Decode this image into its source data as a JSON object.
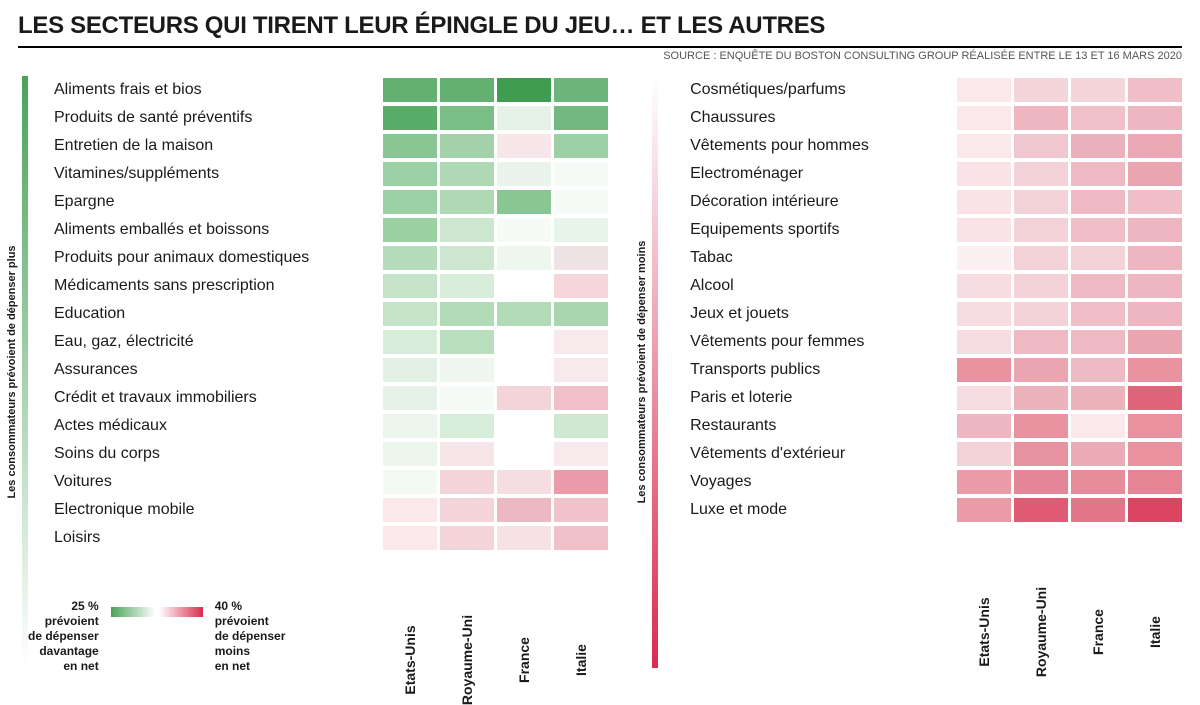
{
  "title": "LES SECTEURS QUI TIRENT LEUR ÉPINGLE DU JEU… ET LES AUTRES",
  "source": "SOURCE : ENQUÊTE DU BOSTON CONSULTING GROUP RÉALISÉE ENTRE LE 13 ET 16 MARS 2020",
  "columns": [
    "Etats-Unis",
    "Royaume-Uni",
    "France",
    "Italie"
  ],
  "left_panel": {
    "side_label": "Les consommateurs prévoient de dépenser plus",
    "gradient": {
      "from": "#4aa35a",
      "to": "#ffffff"
    },
    "rows": [
      {
        "label": "Aliments frais et bios",
        "cells": [
          "#63b071",
          "#63b071",
          "#409c51",
          "#6eb57b"
        ]
      },
      {
        "label": "Produits de santé préventifs",
        "cells": [
          "#5aac69",
          "#7bbd87",
          "#e6f1e8",
          "#73b880"
        ]
      },
      {
        "label": "Entretien de la maison",
        "cells": [
          "#8ac694",
          "#a3d2aa",
          "#f7e7ea",
          "#9ed0a6"
        ]
      },
      {
        "label": "Vitamines/suppléments",
        "cells": [
          "#9cd1a5",
          "#afd9b5",
          "#e9f3eb",
          "#f7fbf8"
        ]
      },
      {
        "label": "Epargne",
        "cells": [
          "#9cd1a5",
          "#afd9b5",
          "#8ac694",
          "#f7fbf8"
        ]
      },
      {
        "label": "Aliments emballés et boissons",
        "cells": [
          "#9bd0a3",
          "#cce6cf",
          "#f7fbf8",
          "#e8f3ea"
        ]
      },
      {
        "label": "Produits pour animaux domestiques",
        "cells": [
          "#b6ddbb",
          "#cce6cf",
          "#edf7ee",
          "#f0e3e6"
        ]
      },
      {
        "label": "Médicaments sans prescription",
        "cells": [
          "#c4e3c8",
          "#d7edda",
          "#fefefe",
          "#f4d6db"
        ]
      },
      {
        "label": "Education",
        "cells": [
          "#c4e3c8",
          "#b1dab6",
          "#b1dab6",
          "#a9d6af"
        ]
      },
      {
        "label": "Eau, gaz, électricité",
        "cells": [
          "#d7edda",
          "#b8debd",
          "#fefefe",
          "#f8e9ec"
        ]
      },
      {
        "label": "Assurances",
        "cells": [
          "#e2f1e4",
          "#eff7f0",
          "#fefefe",
          "#f8e9ec"
        ]
      },
      {
        "label": "Crédit et travaux immobiliers",
        "cells": [
          "#e6f2e7",
          "#f7fbf8",
          "#f2d4d9",
          "#f0bfc8"
        ]
      },
      {
        "label": "Actes médicaux",
        "cells": [
          "#ecf6ed",
          "#d6edd9",
          "#fefefe",
          "#cfe8d2"
        ]
      },
      {
        "label": "Soins du corps",
        "cells": [
          "#ecf6ed",
          "#f7e6e9",
          "#fefefe",
          "#f8e9ec"
        ]
      },
      {
        "label": "Voitures",
        "cells": [
          "#f3faf4",
          "#f3d4d9",
          "#f5dee2",
          "#ea9aa8"
        ]
      },
      {
        "label": "Electronique mobile",
        "cells": [
          "#fbe8eb",
          "#f3d4d9",
          "#ecb8c1",
          "#f1c4cc"
        ]
      },
      {
        "label": "Loisirs",
        "cells": [
          "#fbe8eb",
          "#f3d4d9",
          "#f6e1e5",
          "#f0c1c9"
        ]
      }
    ]
  },
  "right_panel": {
    "side_label": "Les consommateurs prévoient de dépenser moins",
    "gradient": {
      "from": "#ffffff",
      "to": "#d92c4e"
    },
    "rows": [
      {
        "label": "Cosmétiques/parfums",
        "cells": [
          "#fbe8eb",
          "#f4d5da",
          "#f4d5da",
          "#efbec7"
        ]
      },
      {
        "label": "Chaussures",
        "cells": [
          "#fbe8eb",
          "#eeb6c0",
          "#f0c1c9",
          "#eeb6c0"
        ]
      },
      {
        "label": "Vêtements pour hommes",
        "cells": [
          "#fbe8eb",
          "#f0c7cf",
          "#eab0bb",
          "#eaa8b4"
        ]
      },
      {
        "label": "Electroménager",
        "cells": [
          "#f9e3e7",
          "#f3d2d8",
          "#eeb9c2",
          "#eaa5b1"
        ]
      },
      {
        "label": "Décoration intérieure",
        "cells": [
          "#f9e3e7",
          "#f3d2d8",
          "#eeb9c2",
          "#efbec7"
        ]
      },
      {
        "label": "Equipements sportifs",
        "cells": [
          "#f9e3e7",
          "#f3d2d8",
          "#efbec7",
          "#eeb6c0"
        ]
      },
      {
        "label": "Tabac",
        "cells": [
          "#fcf0f2",
          "#f3d2d8",
          "#f3d2d8",
          "#eeb6c0"
        ]
      },
      {
        "label": "Alcool",
        "cells": [
          "#f7dde1",
          "#f3d2d8",
          "#eeb9c2",
          "#eeb6c0"
        ]
      },
      {
        "label": "Jeux et jouets",
        "cells": [
          "#f7dde1",
          "#f3d2d8",
          "#efbec7",
          "#eeb6c0"
        ]
      },
      {
        "label": "Vêtements pour femmes",
        "cells": [
          "#f7dde1",
          "#eeb9c2",
          "#eeb9c2",
          "#eaa5b1"
        ]
      },
      {
        "label": "Transports publics",
        "cells": [
          "#e8939f",
          "#eaa5b1",
          "#edbbc4",
          "#e8939f"
        ]
      },
      {
        "label": "Paris et loterie",
        "cells": [
          "#f7dde1",
          "#edb3bd",
          "#edb3bd",
          "#e0657b"
        ]
      },
      {
        "label": "Restaurants",
        "cells": [
          "#eeb6c0",
          "#e8939f",
          "#fbe8eb",
          "#e9919e"
        ]
      },
      {
        "label": "Vêtements d'extérieur",
        "cells": [
          "#f3d2d8",
          "#e692a0",
          "#eaabb6",
          "#e9919e"
        ]
      },
      {
        "label": "Voyages",
        "cells": [
          "#e99ba8",
          "#e48697",
          "#e58b9a",
          "#e58494"
        ]
      },
      {
        "label": "Luxe et mode",
        "cells": [
          "#e99ba8",
          "#de5b73",
          "#e37589",
          "#db4562"
        ]
      }
    ]
  },
  "legend": {
    "left_pct": "25 %",
    "left_lines": [
      "prévoient",
      "de dépenser",
      "davantage",
      "en net"
    ],
    "right_pct": "40 %",
    "right_lines": [
      "prévoient",
      "de dépenser",
      "moins",
      "en net"
    ],
    "gradient_from": "#4aa35a",
    "gradient_to": "#d92c4e"
  }
}
